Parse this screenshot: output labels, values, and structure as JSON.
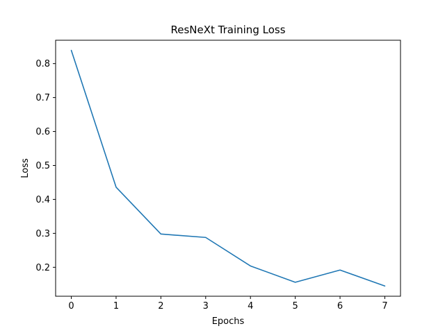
{
  "chart_data": {
    "type": "line",
    "title": "ResNeXt Training Loss",
    "xlabel": "Epochs",
    "ylabel": "Loss",
    "x": [
      0,
      1,
      2,
      3,
      4,
      5,
      6,
      7
    ],
    "series": [
      {
        "values": [
          0.839,
          0.436,
          0.298,
          0.288,
          0.204,
          0.156,
          0.192,
          0.145
        ],
        "color": "#1f77b4"
      }
    ],
    "xlim": [
      -0.35,
      7.35
    ],
    "ylim": [
      0.1148,
      0.8688
    ],
    "xticks": [
      0,
      1,
      2,
      3,
      4,
      5,
      6,
      7
    ],
    "yticks": [
      0.2,
      0.3,
      0.4,
      0.5,
      0.6,
      0.7,
      0.8
    ],
    "grid": false,
    "legend": "none"
  }
}
